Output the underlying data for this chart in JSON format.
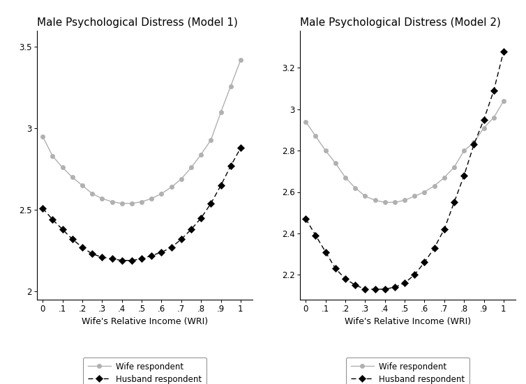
{
  "title1": "Male Psychological Distress (Model 1)",
  "title2": "Male Psychological Distress (Model 2)",
  "xlabel": "Wife's Relative Income (WRI)",
  "legend_wife": "Wife respondent",
  "legend_husband": "Husband respondent",
  "model1": {
    "ylim": [
      1.95,
      3.6
    ],
    "yticks": [
      2.0,
      2.5,
      3.0,
      3.5
    ],
    "yticklabels": [
      "2",
      "2.5",
      "3",
      "3.5"
    ],
    "xticks": [
      0,
      0.1,
      0.2,
      0.3,
      0.4,
      0.5,
      0.6,
      0.7,
      0.8,
      0.9,
      1.0
    ],
    "xticklabels": [
      "0",
      ".1",
      ".2",
      ".3",
      ".4",
      ".5",
      ".6",
      ".7",
      ".8",
      ".9",
      "1"
    ],
    "wife_x": [
      0.0,
      0.05,
      0.1,
      0.15,
      0.2,
      0.25,
      0.3,
      0.35,
      0.4,
      0.45,
      0.5,
      0.55,
      0.6,
      0.65,
      0.7,
      0.75,
      0.8,
      0.85,
      0.9,
      0.95,
      1.0
    ],
    "wife_y": [
      2.95,
      2.83,
      2.76,
      2.7,
      2.65,
      2.6,
      2.57,
      2.55,
      2.54,
      2.54,
      2.55,
      2.57,
      2.6,
      2.64,
      2.69,
      2.76,
      2.84,
      2.93,
      3.1,
      3.26,
      3.42
    ],
    "husband_x": [
      0.0,
      0.05,
      0.1,
      0.15,
      0.2,
      0.25,
      0.3,
      0.35,
      0.4,
      0.45,
      0.5,
      0.55,
      0.6,
      0.65,
      0.7,
      0.75,
      0.8,
      0.85,
      0.9,
      0.95,
      1.0
    ],
    "husband_y": [
      2.51,
      2.44,
      2.38,
      2.32,
      2.27,
      2.23,
      2.21,
      2.2,
      2.19,
      2.19,
      2.2,
      2.22,
      2.24,
      2.27,
      2.32,
      2.38,
      2.45,
      2.54,
      2.65,
      2.77,
      2.88
    ]
  },
  "model2": {
    "ylim": [
      2.08,
      3.38
    ],
    "yticks": [
      2.2,
      2.4,
      2.6,
      2.8,
      3.0,
      3.2
    ],
    "yticklabels": [
      "2.2",
      "2.4",
      "2.6",
      "2.8",
      "3",
      "3.2"
    ],
    "xticks": [
      0,
      0.1,
      0.2,
      0.3,
      0.4,
      0.5,
      0.6,
      0.7,
      0.8,
      0.9,
      1.0
    ],
    "xticklabels": [
      "0",
      ".1",
      ".2",
      ".3",
      ".4",
      ".5",
      ".6",
      ".7",
      ".8",
      ".9",
      "1"
    ],
    "wife_x": [
      0.0,
      0.05,
      0.1,
      0.15,
      0.2,
      0.25,
      0.3,
      0.35,
      0.4,
      0.45,
      0.5,
      0.55,
      0.6,
      0.65,
      0.7,
      0.75,
      0.8,
      0.85,
      0.9,
      0.95,
      1.0
    ],
    "wife_y": [
      2.94,
      2.87,
      2.8,
      2.74,
      2.67,
      2.62,
      2.58,
      2.56,
      2.55,
      2.55,
      2.56,
      2.58,
      2.6,
      2.63,
      2.67,
      2.72,
      2.8,
      2.84,
      2.91,
      2.96,
      3.04
    ],
    "husband_x": [
      0.0,
      0.05,
      0.1,
      0.15,
      0.2,
      0.25,
      0.3,
      0.35,
      0.4,
      0.45,
      0.5,
      0.55,
      0.6,
      0.65,
      0.7,
      0.75,
      0.8,
      0.85,
      0.9,
      0.95,
      1.0
    ],
    "husband_y": [
      2.47,
      2.39,
      2.31,
      2.23,
      2.18,
      2.15,
      2.13,
      2.13,
      2.13,
      2.14,
      2.16,
      2.2,
      2.26,
      2.33,
      2.42,
      2.55,
      2.68,
      2.83,
      2.95,
      3.09,
      3.28
    ]
  },
  "wife_color": "#b0b0b0",
  "husband_color": "#000000",
  "bg_color": "#ffffff",
  "wife_marker": "o",
  "husband_marker": "D",
  "linewidth": 1.0,
  "markersize_wife": 4.5,
  "markersize_husband": 5.5,
  "title_fontsize": 11,
  "tick_fontsize": 8.5,
  "label_fontsize": 9,
  "legend_fontsize": 8.5
}
